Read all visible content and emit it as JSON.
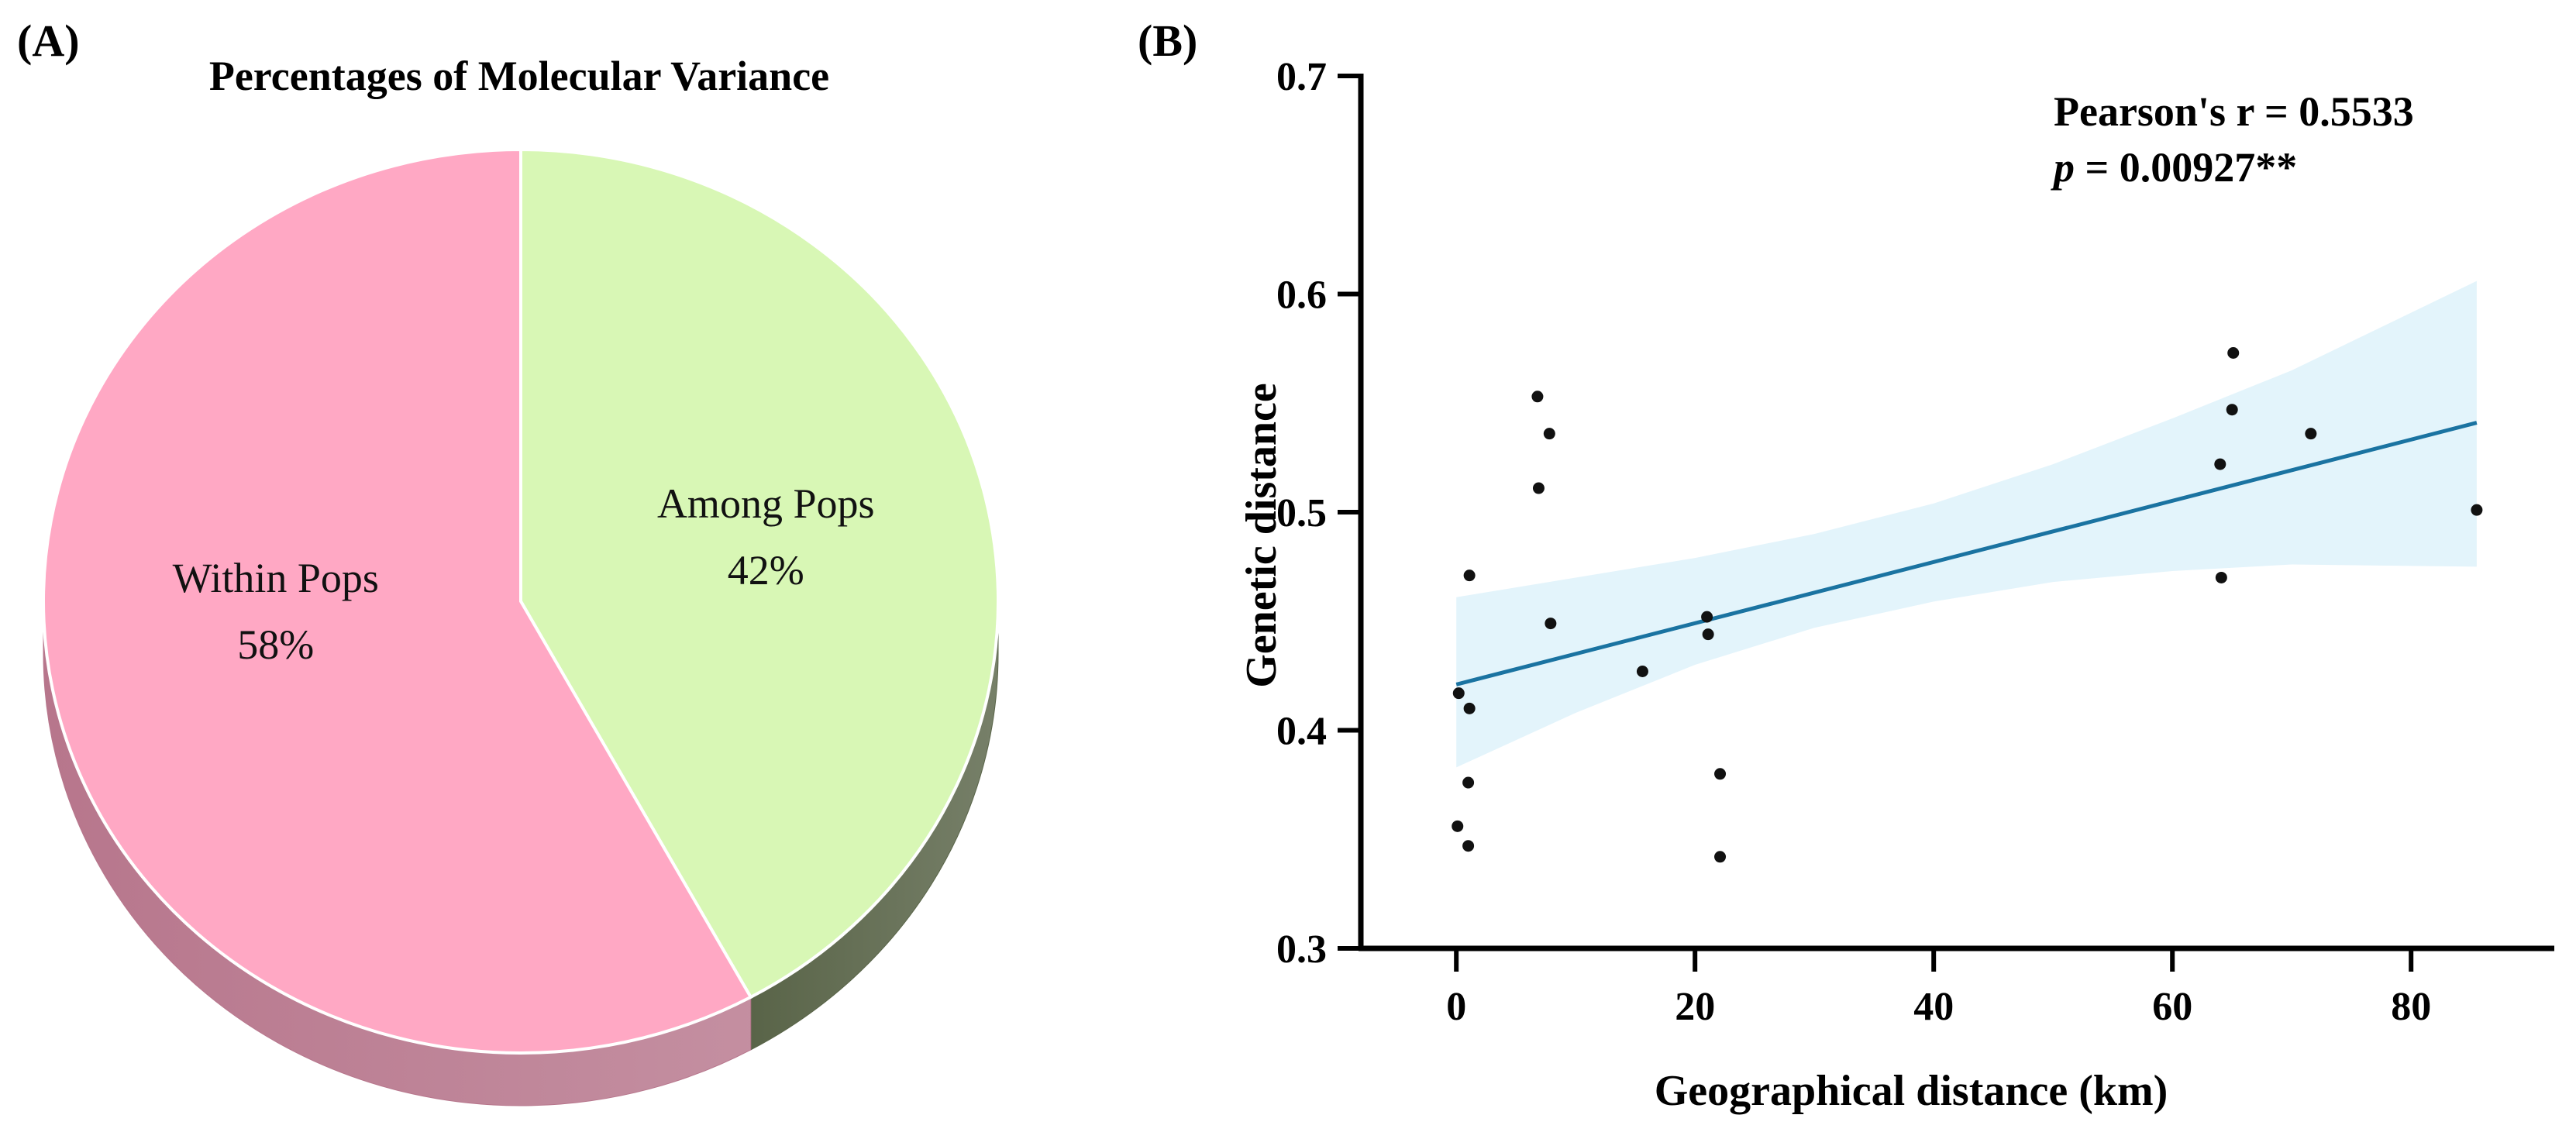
{
  "panels": {
    "a_label": "(A)",
    "b_label": "(B)"
  },
  "chart_data": [
    {
      "type": "pie",
      "title": "Percentages of Molecular Variance",
      "slices": [
        {
          "label": "Among Pops",
          "value": 42,
          "value_label": "42%",
          "color": "#d8f7b5",
          "side_color": "#596448"
        },
        {
          "label": "Within Pops",
          "value": 58,
          "value_label": "58%",
          "color": "#ffa8c4",
          "side_color": "#b7768c"
        }
      ],
      "start": "12 o'clock",
      "direction": "clockwise",
      "style": "3d-tilted"
    },
    {
      "type": "scatter",
      "title": "",
      "xlabel": "Geographical distance (km)",
      "ylabel": "Genetic distance",
      "xlim": [
        -8,
        92
      ],
      "ylim": [
        0.3,
        0.7
      ],
      "xticks": [
        0,
        20,
        40,
        60,
        80
      ],
      "xtick_labels": [
        "0",
        "20",
        "40",
        "60",
        "80"
      ],
      "yticks": [
        0.3,
        0.4,
        0.5,
        0.6,
        0.7
      ],
      "ytick_labels": [
        "0.3",
        "0.4",
        "0.5",
        "0.6",
        "0.7"
      ],
      "grid": false,
      "points": [
        {
          "x": 0.1,
          "y": 0.356
        },
        {
          "x": 0.2,
          "y": 0.417
        },
        {
          "x": 1.0,
          "y": 0.347
        },
        {
          "x": 1.0,
          "y": 0.376
        },
        {
          "x": 1.1,
          "y": 0.41
        },
        {
          "x": 1.1,
          "y": 0.471
        },
        {
          "x": 6.8,
          "y": 0.553
        },
        {
          "x": 6.9,
          "y": 0.511
        },
        {
          "x": 7.8,
          "y": 0.536
        },
        {
          "x": 7.9,
          "y": 0.449
        },
        {
          "x": 15.6,
          "y": 0.427
        },
        {
          "x": 21.0,
          "y": 0.452
        },
        {
          "x": 21.1,
          "y": 0.444
        },
        {
          "x": 22.1,
          "y": 0.38
        },
        {
          "x": 22.1,
          "y": 0.342
        },
        {
          "x": 64.0,
          "y": 0.522
        },
        {
          "x": 64.1,
          "y": 0.47
        },
        {
          "x": 65.0,
          "y": 0.547
        },
        {
          "x": 65.1,
          "y": 0.573
        },
        {
          "x": 71.6,
          "y": 0.536
        },
        {
          "x": 85.5,
          "y": 0.501
        }
      ],
      "fit_line": {
        "x": [
          0,
          85.5
        ],
        "y": [
          0.421,
          0.541
        ],
        "color": "#1a73a1"
      },
      "confidence_band": {
        "x": [
          0,
          10,
          20,
          30,
          40,
          50,
          60,
          70,
          85.5
        ],
        "lower": [
          0.383,
          0.408,
          0.43,
          0.447,
          0.459,
          0.468,
          0.473,
          0.476,
          0.475
        ],
        "upper": [
          0.461,
          0.47,
          0.479,
          0.49,
          0.504,
          0.522,
          0.543,
          0.565,
          0.606
        ],
        "color": "#e3f4fb"
      },
      "point_color": "#111111",
      "annotations": {
        "pearson": "Pearson's r = 0.5533",
        "p_symbol": "p",
        "p_rest": " = 0.00927**"
      }
    }
  ]
}
